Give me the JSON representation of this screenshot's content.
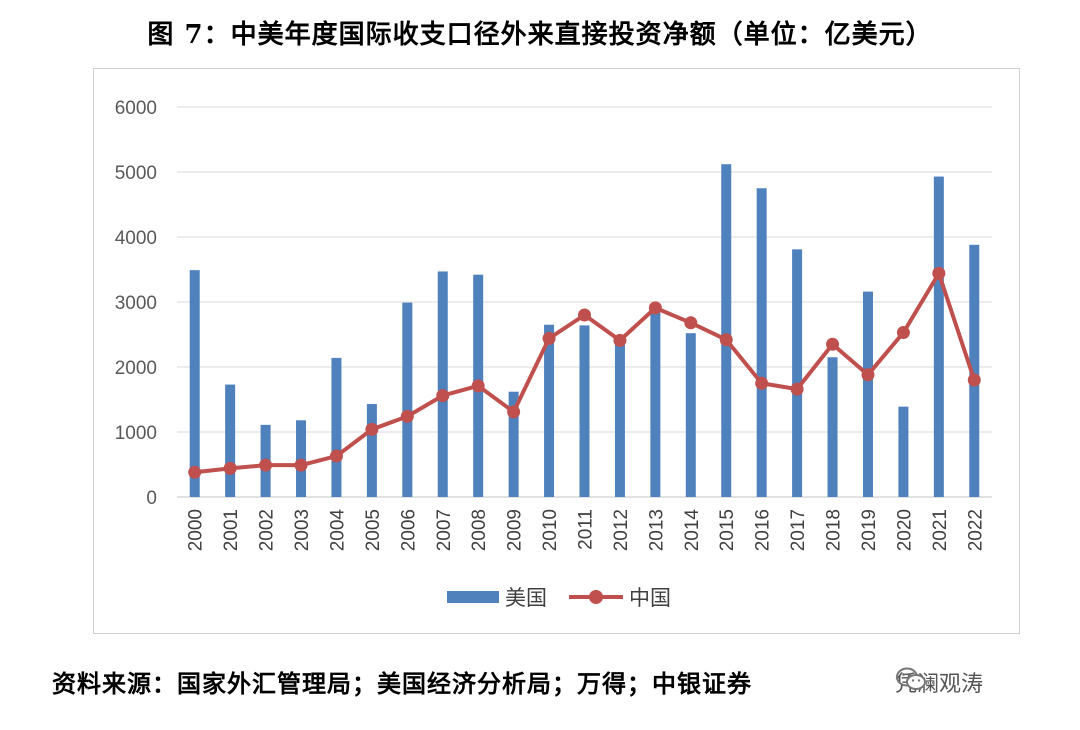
{
  "title": "图 7：中美年度国际收支口径外来直接投资净额（单位：亿美元）",
  "source": "资料来源：国家外汇管理局；美国经济分析局；万得；中银证券",
  "watermark": {
    "text": "凭澜观涛",
    "icon": "wechat-icon"
  },
  "colors": {
    "bar": "#4f81bd",
    "line": "#c0504d",
    "grid": "#d9d9d9",
    "axis": "#d9d9d9",
    "tick": "#595959"
  },
  "chart_data": {
    "type": "bar",
    "title": "图 7：中美年度国际收支口径外来直接投资净额（单位：亿美元）",
    "xlabel": "",
    "ylabel": "",
    "ylim": [
      0,
      6000
    ],
    "yticks": [
      0,
      1000,
      2000,
      3000,
      4000,
      5000,
      6000
    ],
    "grid": true,
    "legend_position": "bottom",
    "categories": [
      "2000",
      "2001",
      "2002",
      "2003",
      "2004",
      "2005",
      "2006",
      "2007",
      "2008",
      "2009",
      "2010",
      "2011",
      "2012",
      "2013",
      "2014",
      "2015",
      "2016",
      "2017",
      "2018",
      "2019",
      "2020",
      "2021",
      "2022"
    ],
    "series": [
      {
        "name": "美国",
        "type": "bar",
        "values": [
          3490,
          1730,
          1110,
          1180,
          2140,
          1430,
          2990,
          3470,
          3420,
          1620,
          2650,
          2640,
          2450,
          2840,
          2520,
          5120,
          4750,
          3810,
          2150,
          3160,
          1390,
          4930,
          3880
        ]
      },
      {
        "name": "中国",
        "type": "line",
        "values": [
          380,
          440,
          490,
          490,
          630,
          1040,
          1240,
          1560,
          1710,
          1310,
          2440,
          2800,
          2410,
          2910,
          2680,
          2420,
          1750,
          1660,
          2350,
          1880,
          2530,
          3440,
          1800
        ]
      }
    ]
  }
}
